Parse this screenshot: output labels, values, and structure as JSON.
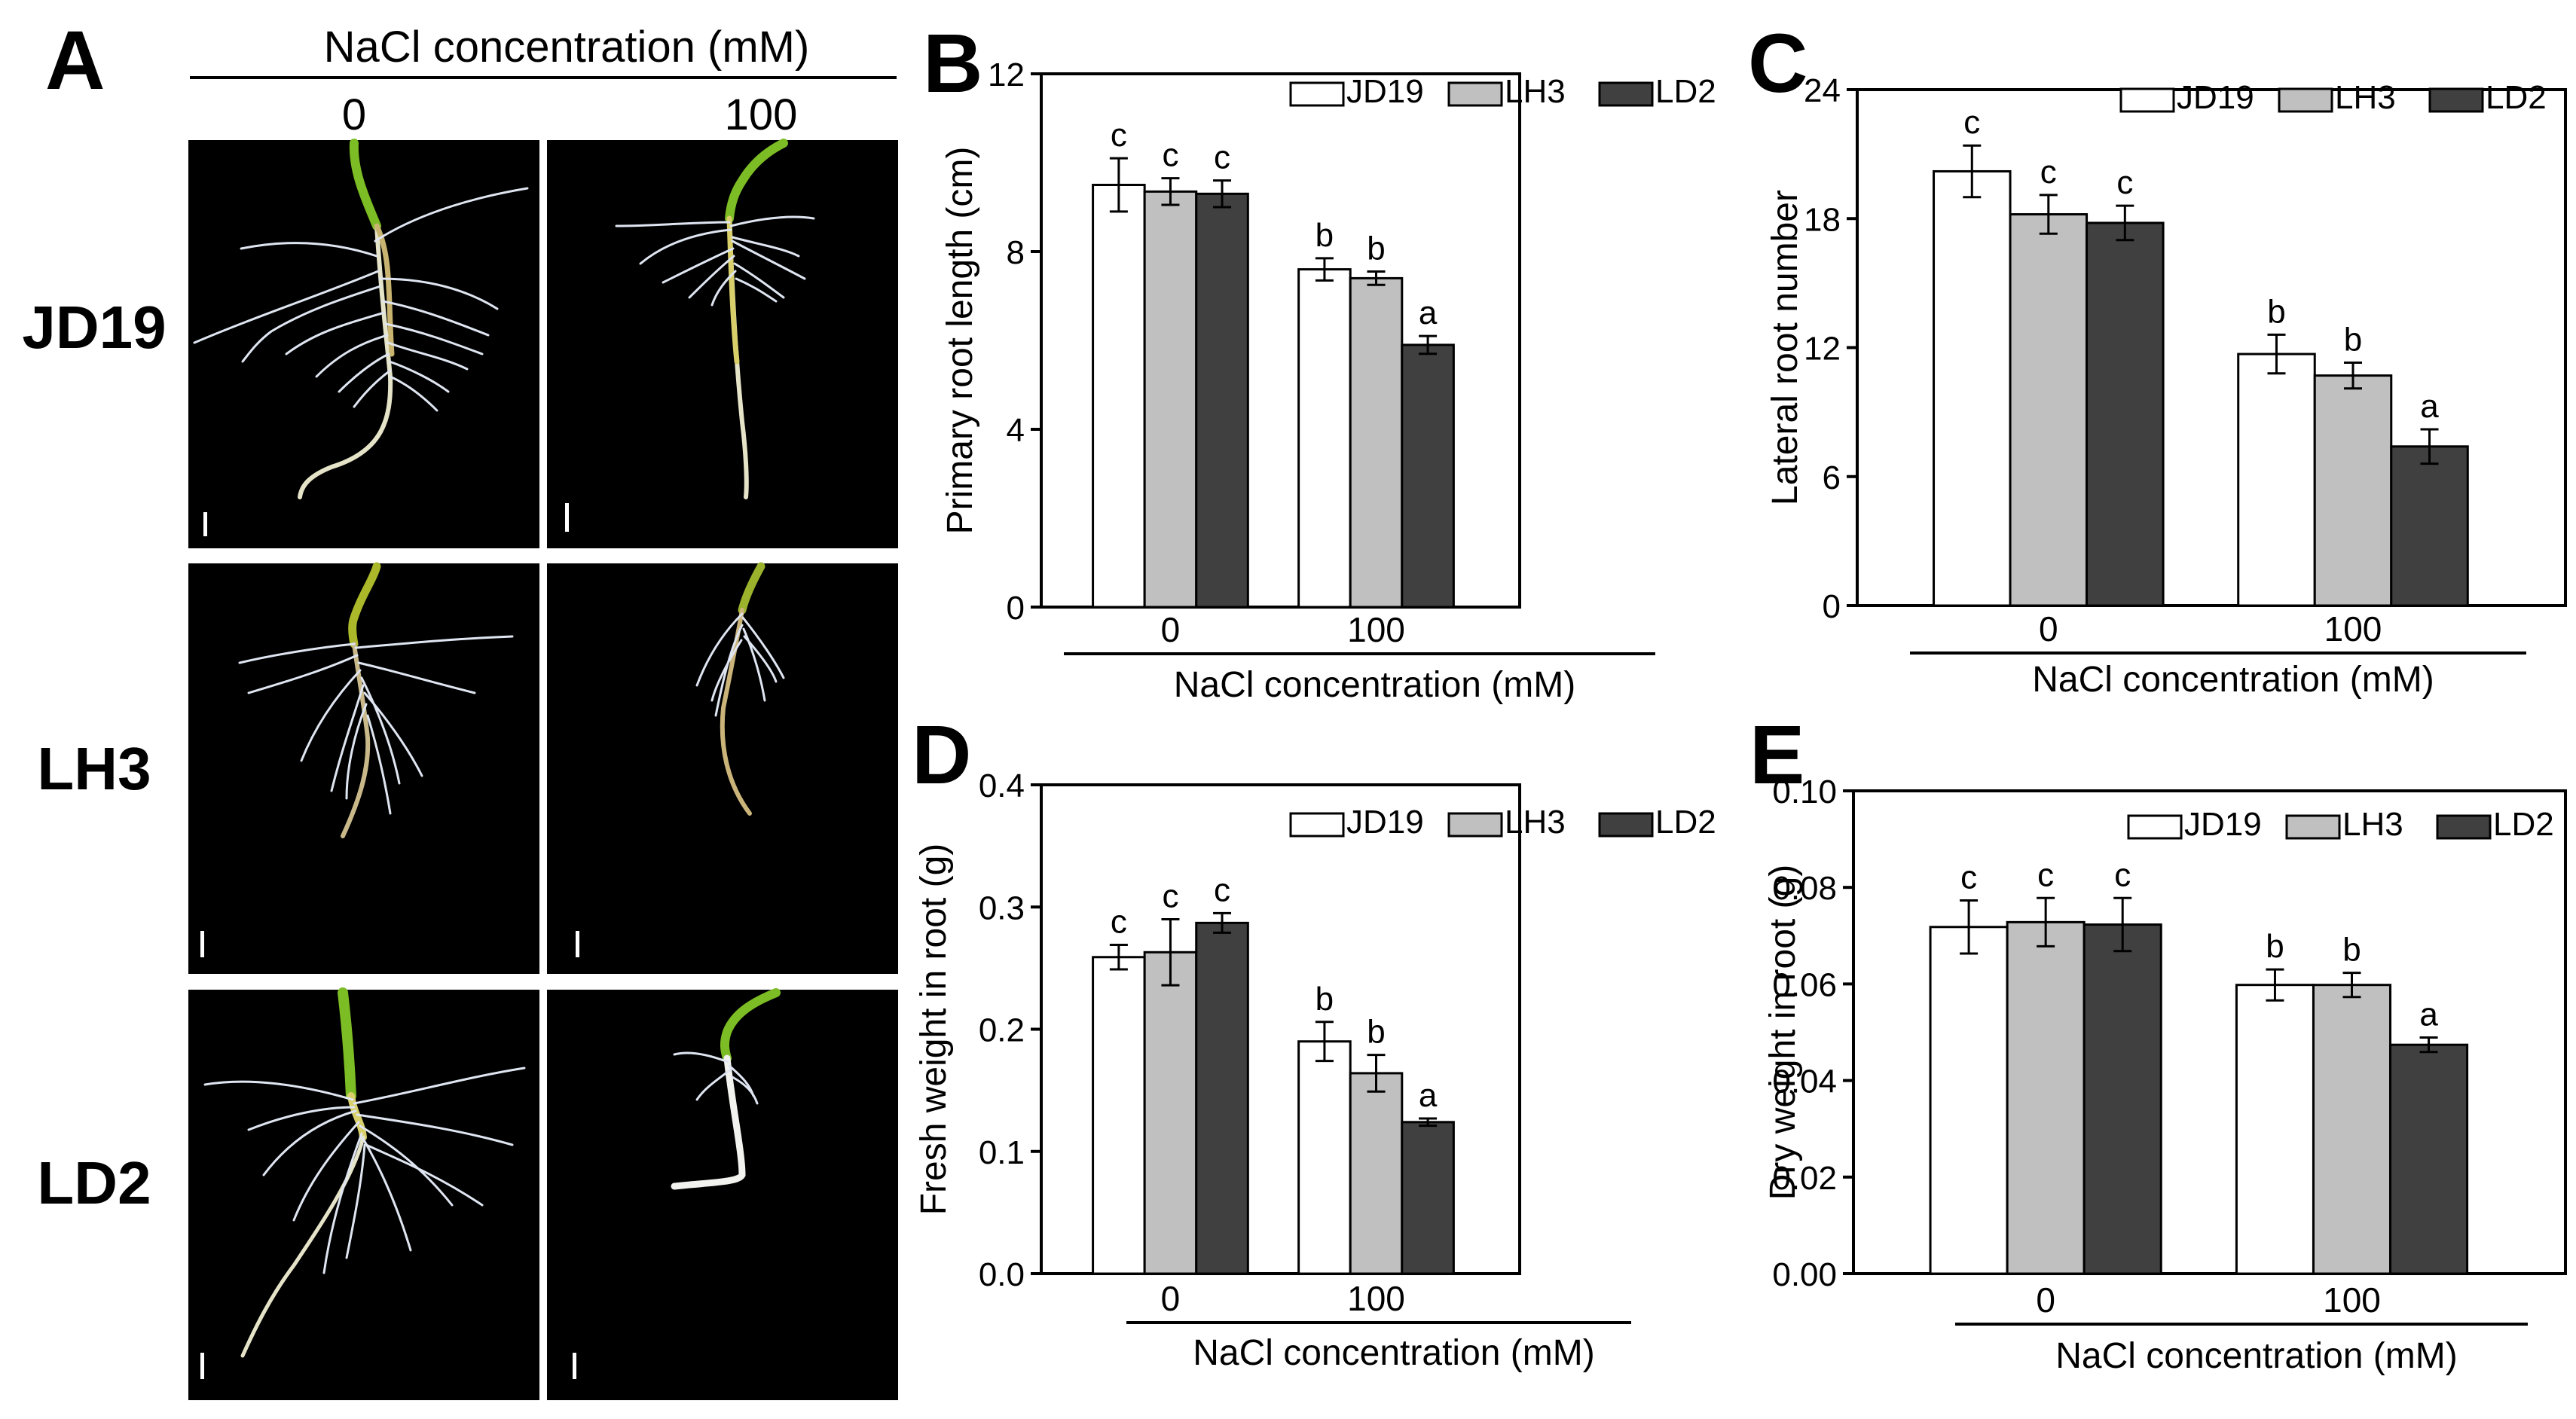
{
  "photo_panel": {
    "letter": "A",
    "header": "NaCl concentration (mM)",
    "columns": [
      "0",
      "100"
    ],
    "rows": [
      "JD19",
      "LH3",
      "LD2"
    ]
  },
  "colors": {
    "JD19": "#ffffff",
    "LH3": "#c0c0c0",
    "LD2": "#404040",
    "photo_bg": "#000000"
  },
  "chart_data": [
    {
      "panel": "B",
      "type": "bar",
      "ylabel": "Primary root length (cm)",
      "xlabel": "NaCl concentration (mM)",
      "categories": [
        "0",
        "100"
      ],
      "ylim": [
        0,
        12
      ],
      "yticks": [
        "0",
        "4",
        "8",
        "12"
      ],
      "legend_position": "top-right",
      "series": [
        {
          "name": "JD19",
          "values": [
            9.5,
            7.6
          ],
          "errors": [
            0.6,
            0.25
          ],
          "letters": [
            "c",
            "b"
          ]
        },
        {
          "name": "LH3",
          "values": [
            9.35,
            7.4
          ],
          "errors": [
            0.3,
            0.15
          ],
          "letters": [
            "c",
            "b"
          ]
        },
        {
          "name": "LD2",
          "values": [
            9.3,
            5.9
          ],
          "errors": [
            0.3,
            0.2
          ],
          "letters": [
            "c",
            "a"
          ]
        }
      ]
    },
    {
      "panel": "C",
      "type": "bar",
      "ylabel": "Lateral root number",
      "xlabel": "NaCl concentration (mM)",
      "categories": [
        "0",
        "100"
      ],
      "ylim": [
        0,
        24
      ],
      "yticks": [
        "0",
        "6",
        "12",
        "18",
        "24"
      ],
      "legend_position": "top-right",
      "series": [
        {
          "name": "JD19",
          "values": [
            20.2,
            11.7
          ],
          "errors": [
            1.2,
            0.9
          ],
          "letters": [
            "c",
            "b"
          ]
        },
        {
          "name": "LH3",
          "values": [
            18.2,
            10.7
          ],
          "errors": [
            0.9,
            0.6
          ],
          "letters": [
            "c",
            "b"
          ]
        },
        {
          "name": "LD2",
          "values": [
            17.8,
            7.4
          ],
          "errors": [
            0.8,
            0.8
          ],
          "letters": [
            "c",
            "a"
          ]
        }
      ]
    },
    {
      "panel": "D",
      "type": "bar",
      "ylabel": "Fresh weight in root (g)",
      "xlabel": "NaCl concentration (mM)",
      "categories": [
        "0",
        "100"
      ],
      "ylim": [
        0,
        0.4
      ],
      "yticks": [
        "0.0",
        "0.1",
        "0.2",
        "0.3",
        "0.4"
      ],
      "legend_position": "top-right",
      "series": [
        {
          "name": "JD19",
          "values": [
            0.259,
            0.19
          ],
          "errors": [
            0.01,
            0.016
          ],
          "letters": [
            "c",
            "b"
          ]
        },
        {
          "name": "LH3",
          "values": [
            0.263,
            0.164
          ],
          "errors": [
            0.027,
            0.015
          ],
          "letters": [
            "c",
            "b"
          ]
        },
        {
          "name": "LD2",
          "values": [
            0.287,
            0.124
          ],
          "errors": [
            0.008,
            0.003
          ],
          "letters": [
            "c",
            "a"
          ]
        }
      ]
    },
    {
      "panel": "E",
      "type": "bar",
      "ylabel": "Dry weight in root (g)",
      "xlabel": "NaCl concentration (mM)",
      "categories": [
        "0",
        "100"
      ],
      "ylim": [
        0,
        0.1
      ],
      "yticks": [
        "0.00",
        "0.02",
        "0.04",
        "0.06",
        "0.08",
        "0.10"
      ],
      "legend_position": "top-right",
      "series": [
        {
          "name": "JD19",
          "values": [
            0.0718,
            0.0598
          ],
          "errors": [
            0.0055,
            0.0032
          ],
          "letters": [
            "c",
            "b"
          ]
        },
        {
          "name": "LH3",
          "values": [
            0.0728,
            0.0598
          ],
          "errors": [
            0.005,
            0.0025
          ],
          "letters": [
            "c",
            "b"
          ]
        },
        {
          "name": "LD2",
          "values": [
            0.0723,
            0.0474
          ],
          "errors": [
            0.0055,
            0.0015
          ],
          "letters": [
            "c",
            "a"
          ]
        }
      ]
    }
  ]
}
